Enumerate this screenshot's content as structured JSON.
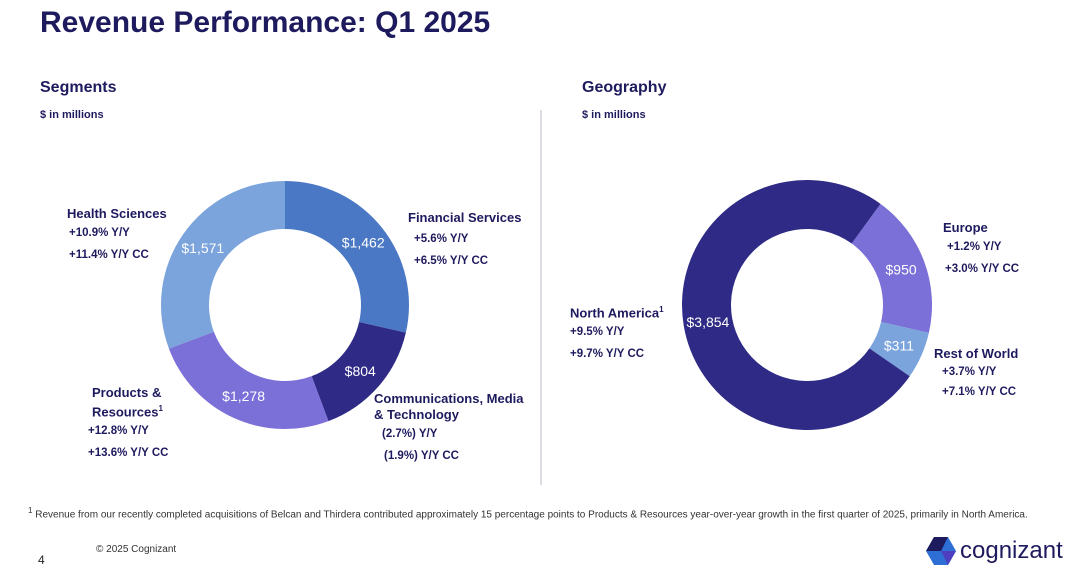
{
  "title": "Revenue Performance: Q1 2025",
  "footnote_marker": "1",
  "footnote": "Revenue from our recently completed acquisitions of Belcan and Thirdera contributed approximately 15 percentage points to Products & Resources year-over-year growth in the first quarter of 2025, primarily in North America.",
  "copyright": "© 2025 Cognizant",
  "page_number": "4",
  "logo_text": "cognizant",
  "chart_data": [
    {
      "type": "pie",
      "title": "Segments",
      "subtitle": "$ in millions",
      "start_angle_deg": 0,
      "slices": [
        {
          "name": "Financial Services",
          "value": 1462,
          "label": "$1,462",
          "yy": "+5.6%  Y/Y",
          "yycc": "+6.5%  Y/Y CC",
          "color": "#4a78c4"
        },
        {
          "name": "Communications, Media & Technology",
          "value": 804,
          "label": "$804",
          "yy": "(2.7%) Y/Y",
          "yycc": "(1.9%) Y/Y CC",
          "color": "#2e2a85"
        },
        {
          "name": "Products & Resources",
          "value": 1278,
          "label": "$1,278",
          "yy": "+12.8%  Y/Y",
          "yycc": "+13.6%  Y/Y CC",
          "color": "#7b6fd8"
        },
        {
          "name": "Health Sciences",
          "value": 1571,
          "label": "$1,571",
          "yy": "+10.9%  Y/Y",
          "yycc": "+11.4%  Y/Y CC",
          "color": "#7ba3dc"
        }
      ]
    },
    {
      "type": "pie",
      "title": "Geography",
      "subtitle": "$ in millions",
      "start_angle_deg": 36,
      "slices": [
        {
          "name": "Europe",
          "value": 950,
          "label": "$950",
          "yy": "+1.2%  Y/Y",
          "yycc": "+3.0%  Y/Y CC",
          "color": "#7b6fd8"
        },
        {
          "name": "Rest of World",
          "value": 311,
          "label": "$311",
          "yy": "+3.7%  Y/Y",
          "yycc": "+7.1%  Y/Y CC",
          "color": "#7ba3dc"
        },
        {
          "name": "North America",
          "value": 3854,
          "label": "$3,854",
          "yy": "+9.5%  Y/Y",
          "yycc": "+9.7%  Y/Y CC",
          "color": "#2e2a85"
        }
      ]
    }
  ]
}
